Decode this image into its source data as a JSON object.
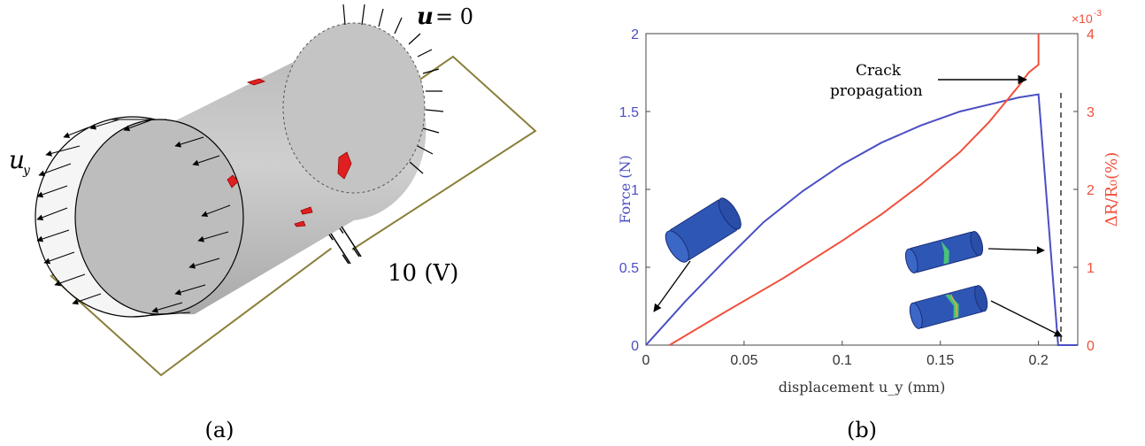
{
  "panel_a": {
    "caption": "(a)",
    "label_uy": "u",
    "label_uy_sub": "y",
    "label_bc_u": "u",
    "label_bc_eq": "= 0",
    "label_voltage": "10 (V)"
  },
  "panel_b": {
    "caption": "(b)",
    "annotation_crack_line1": "Crack",
    "annotation_crack_line2": "propagation",
    "ylabel_left": "Force (N)",
    "ylabel_right": "ΔR/R₀(%)",
    "exponent_label": "×10",
    "exponent_power": "-3",
    "xlabel": "displacement u_y (mm)"
  },
  "colors": {
    "force": "#4a4fc4",
    "resistance": "#f0503c",
    "circuit": "#8a7f3a",
    "cylinder": "#c8c8c8",
    "crack": "#e02020"
  },
  "chart_data": {
    "type": "line",
    "xlabel": "displacement u_y (mm)",
    "xlim": [
      0,
      0.22
    ],
    "x_ticks": [
      "0",
      "0.05",
      "0.1",
      "0.15",
      "0.2"
    ],
    "y_left_label": "Force (N)",
    "y_left_lim": [
      0,
      2
    ],
    "y_left_ticks": [
      "0",
      "0.5",
      "1",
      "1.5",
      "2"
    ],
    "y_right_label": "ΔR/R₀(%)",
    "y_right_lim": [
      0,
      4
    ],
    "y_right_ticks": [
      "0",
      "1",
      "2",
      "3",
      "4"
    ],
    "y_right_multiplier": "×10^-3",
    "series": [
      {
        "axis": "left",
        "x": [
          0,
          0.02,
          0.04,
          0.06,
          0.08,
          0.1,
          0.12,
          0.14,
          0.16,
          0.18,
          0.19,
          0.2,
          0.21,
          0.22
        ],
        "y": [
          0,
          0.28,
          0.54,
          0.79,
          0.99,
          1.16,
          1.3,
          1.41,
          1.5,
          1.56,
          1.59,
          1.61,
          0,
          0
        ]
      },
      {
        "axis": "right",
        "x": [
          0.012,
          0.04,
          0.07,
          0.1,
          0.12,
          0.14,
          0.16,
          0.175,
          0.19,
          0.195,
          0.2,
          0.2
        ],
        "y": [
          0,
          0.42,
          0.86,
          1.34,
          1.68,
          2.06,
          2.48,
          2.87,
          3.33,
          3.5,
          3.6,
          4.0
        ]
      }
    ],
    "annotations": [
      "Crack",
      "propagation"
    ]
  }
}
